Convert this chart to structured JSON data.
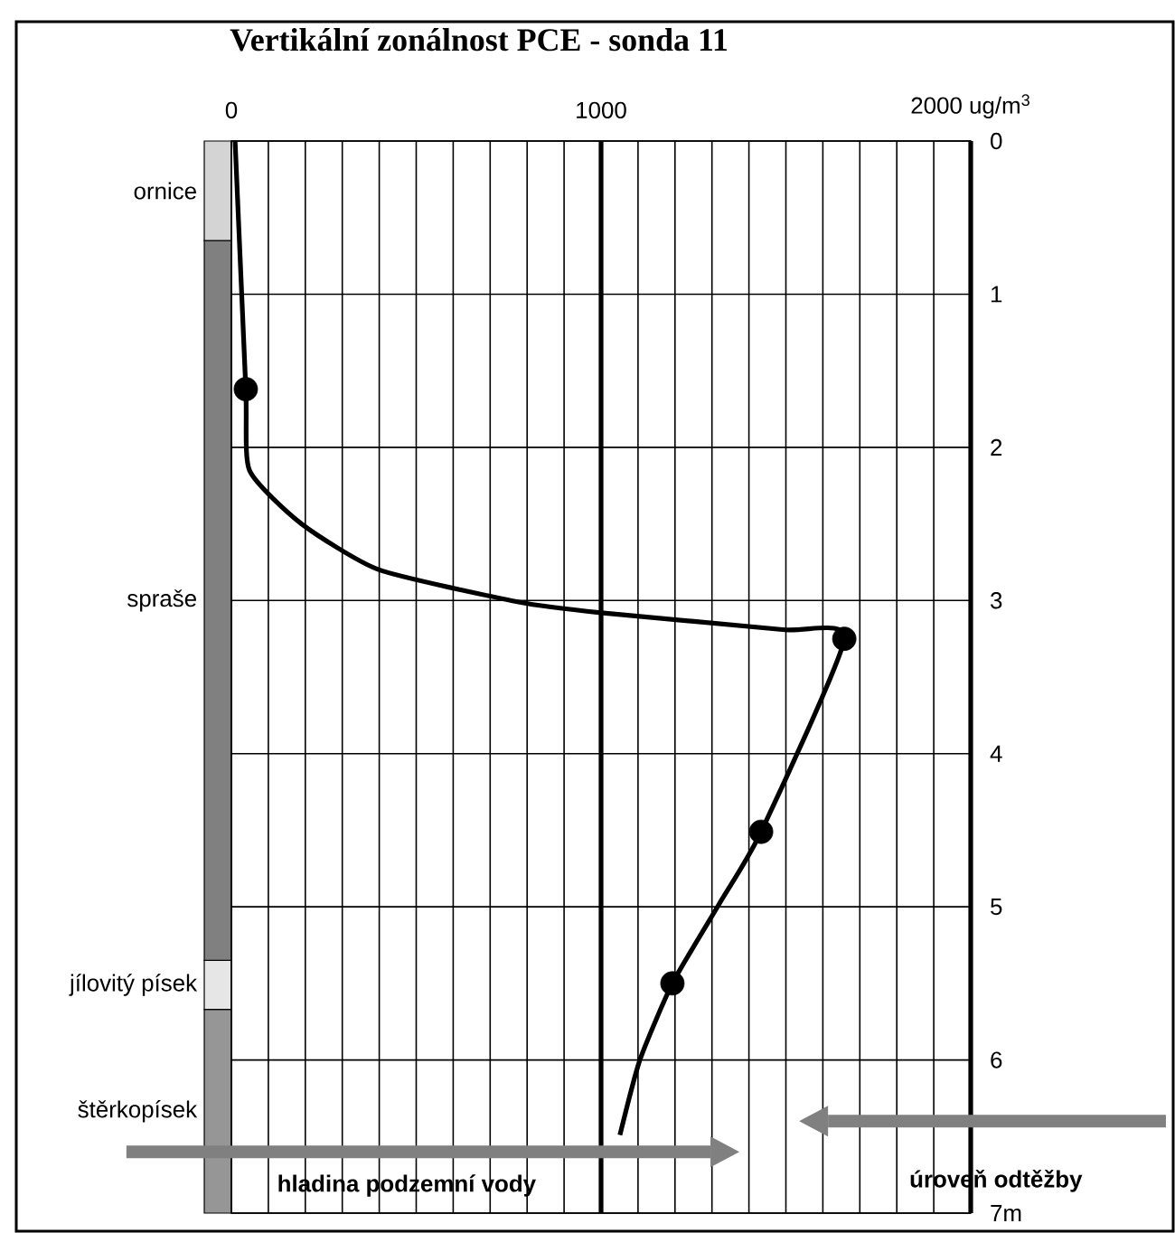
{
  "chart_data": [
    {
      "type": "bar",
      "stacked": true,
      "categories": [
        null
      ],
      "ylim": [
        7,
        0
      ],
      "tick_labels": false,
      "series": [
        {
          "name": "ornice",
          "color": "#d4d4d4",
          "values": [
            0.65
          ]
        },
        {
          "name": "spraše",
          "color": "#808080",
          "values": [
            4.7
          ]
        },
        {
          "name": "jílovitý písek",
          "color": "#e6e6e6",
          "values": [
            0.32
          ]
        },
        {
          "name": "štěrkopísek",
          "color": "#969696",
          "values": [
            1.33
          ]
        }
      ]
    },
    {
      "type": "line",
      "title": "Vertikální zonálnost PCE - sonda 11",
      "xlim": [
        0,
        2000
      ],
      "xticks": [
        0,
        {
          "value": 100,
          "label": null
        },
        {
          "value": 200,
          "label": null
        },
        {
          "value": 300,
          "label": null
        },
        {
          "value": 400,
          "label": null
        },
        {
          "value": 500,
          "label": null
        },
        {
          "value": 600,
          "label": null
        },
        {
          "value": 700,
          "label": null
        },
        {
          "value": 800,
          "label": null
        },
        {
          "value": 900,
          "label": null
        },
        1000,
        {
          "value": 1100,
          "label": null
        },
        {
          "value": 1200,
          "label": null
        },
        {
          "value": 1300,
          "label": null
        },
        {
          "value": 1400,
          "label": null
        },
        {
          "value": 1500,
          "label": null
        },
        {
          "value": 1600,
          "label": null
        },
        {
          "value": 1700,
          "label": null
        },
        {
          "value": 1800,
          "label": null
        },
        {
          "value": 1900,
          "label": null
        },
        {
          "value": 2000,
          "label": "2000 ug/m$^{3}$"
        }
      ],
      "ylim": [
        7,
        0
      ],
      "yticks": [
        0,
        1,
        2,
        3,
        4,
        5,
        6,
        {
          "value": 7,
          "label": "7m"
        }
      ],
      "grid": true,
      "series": [
        {
          "type": "line",
          "color": "#000000",
          "marker": "none",
          "x": [
            10,
            39,
            49,
            190,
            400,
            777,
            1000,
            1491,
            1658,
            1433,
            1320,
            1193,
            1105,
            1051
          ],
          "values": [
            0,
            1.62,
            2.15,
            2.5,
            2.8,
            3.01,
            3.08,
            3.19,
            3.25,
            4.51,
            4.98,
            5.5,
            6.0,
            6.49
          ]
        },
        {
          "type": "scatter",
          "color": "#000000",
          "marker": "circle",
          "x": [
            39,
            1658,
            1433,
            1193
          ],
          "values": [
            1.62,
            3.25,
            4.51,
            5.5
          ]
        }
      ],
      "ref_lines": [
        {
          "axis": "x",
          "value": 1000,
          "color": "#000000"
        },
        {
          "axis": "y",
          "value": 6.6,
          "label": "hladina podzemní vody",
          "color": "#808080"
        },
        {
          "axis": "y",
          "value": 6.4,
          "label": "úroveň odtěžby",
          "color": "#808080"
        }
      ]
    }
  ]
}
